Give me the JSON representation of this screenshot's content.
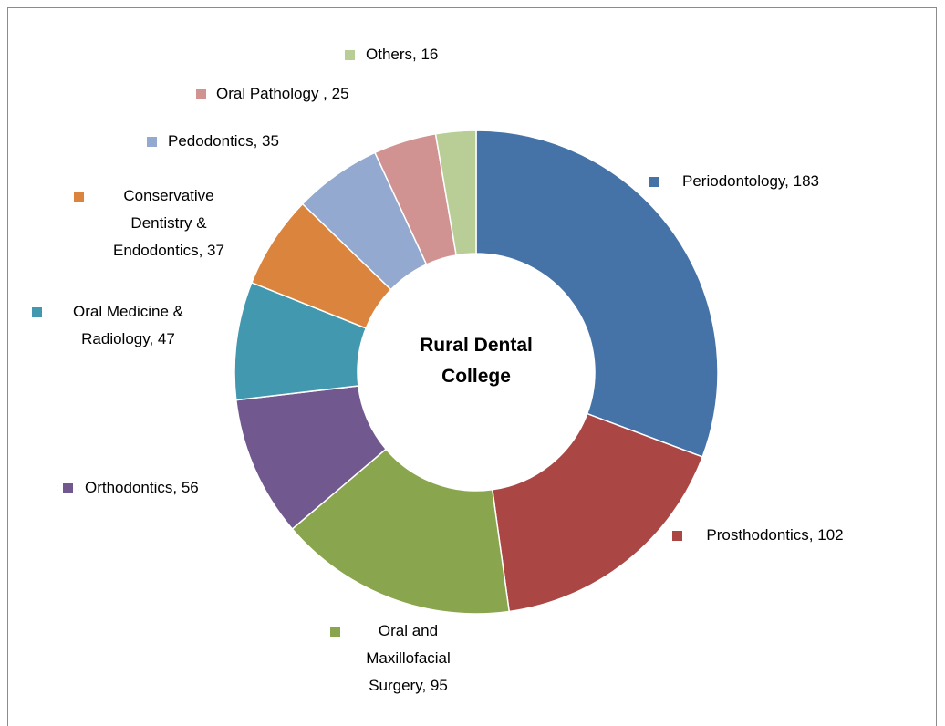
{
  "chart_data": {
    "type": "donut",
    "title": "Rural Dental College",
    "values": [
      183,
      102,
      95,
      56,
      47,
      37,
      35,
      25,
      16
    ],
    "value_labels": [
      "Periodontology, 183",
      "Prosthodontics, 102",
      "Oral and Maxillofacial Surgery, 95",
      "Orthodontics, 56",
      "Oral Medicine & Radiology, 47",
      "Conservative Dentistry & Endodontics, 37",
      "Pedodontics, 35",
      "Oral Pathology , 25",
      "Others, 16"
    ],
    "colors": [
      "#4572a7",
      "#aa4643",
      "#89a54e",
      "#71588f",
      "#4198af",
      "#db843d",
      "#93a9cf",
      "#d19392",
      "#b9cd96"
    ]
  }
}
